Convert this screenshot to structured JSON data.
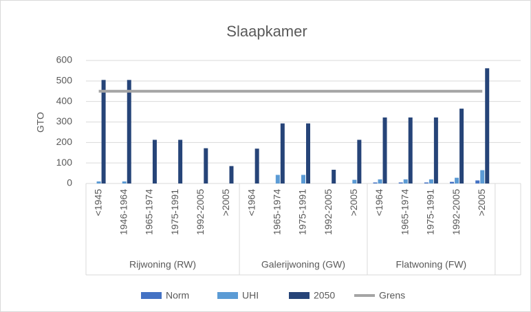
{
  "chart_data": {
    "type": "bar",
    "title": "Slaapkamer",
    "y_label": "GTO",
    "categories": [
      "<1945",
      "1946-1964",
      "1965-1974",
      "1975-1991",
      "1992-2005",
      ">2005",
      "<1964",
      "1965-1974",
      "1975-1991",
      "1992-2005",
      ">2005",
      "<1964",
      "1965-1974",
      "1975-1991",
      "1992-2005",
      ">2005",
      null
    ],
    "groups": [
      "Rijwoning (RW)",
      "Galerijwoning (GW)",
      "Flatwoning (FW)"
    ],
    "series": [
      {
        "name": "Norm",
        "color": "#4472c4",
        "values": [
          0,
          0,
          0,
          0,
          0,
          0,
          0,
          0,
          0,
          0,
          0,
          5,
          5,
          5,
          8,
          15,
          null
        ]
      },
      {
        "name": "UHI",
        "color": "#5b9bd5",
        "values": [
          10,
          10,
          0,
          0,
          0,
          0,
          0,
          42,
          42,
          0,
          18,
          20,
          20,
          20,
          28,
          65,
          null
        ]
      },
      {
        "name": "2050",
        "color": "#264478",
        "values": [
          505,
          505,
          213,
          213,
          172,
          85,
          170,
          293,
          293,
          67,
          213,
          322,
          322,
          322,
          365,
          562,
          null
        ]
      },
      {
        "name": "Grens",
        "color": "#a5a5a5",
        "type": "line",
        "values": [
          450,
          450,
          450,
          450,
          450,
          450,
          450,
          450,
          450,
          450,
          450,
          450,
          450,
          450,
          450,
          450,
          null
        ]
      }
    ],
    "ylim": [
      0,
      600
    ],
    "yticks": [
      0,
      100,
      200,
      300,
      400,
      500,
      600
    ],
    "grid": true,
    "legend": "bottom"
  }
}
